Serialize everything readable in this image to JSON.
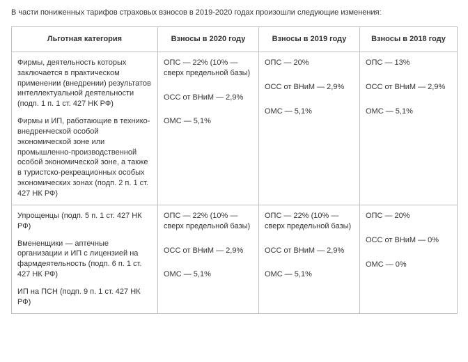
{
  "intro": "В части пониженных тарифов страховых взносов в 2019-2020 годах произошли следующие изменения:",
  "headers": {
    "c0": "Льготная категория",
    "c1": "Взносы в 2020 году",
    "c2": "Взносы в 2019 году",
    "c3": "Взносы в 2018 году"
  },
  "rows": [
    {
      "cat": [
        "Фирмы, деятельность которых заключается в практическом применении (внедрении) результатов интеллектуальной деятельности (подп. 1 п. 1 ст. 427 НК РФ)",
        "Фирмы и ИП, работающие в технико-внедренческой особой экономической зоне или промышленно-производственной особой экономической зоне, а также в туристско-рекреационных особых экономических зонах (подп. 2 п. 1 ст. 427 НК РФ)"
      ],
      "v2020": [
        "ОПС — 22% (10% — сверх предельной базы)",
        "ОСС от ВНиМ — 2,9%",
        "ОМС — 5,1%"
      ],
      "v2019": [
        "ОПС — 20%",
        "ОСС от ВНиМ — 2,9%",
        "ОМС — 5,1%"
      ],
      "v2018": [
        "ОПС — 13%",
        "ОСС от ВНиМ — 2,9%",
        "ОМС — 5,1%"
      ]
    },
    {
      "cat": [
        "Упрощенцы (подп. 5 п. 1 ст. 427 НК РФ)",
        "Вмененщики — аптечные организации и ИП с лицензией на фармдеятельность (подп. 6 п. 1 ст. 427 НК РФ)",
        "ИП на ПСН (подп. 9 п. 1 ст. 427 НК РФ)"
      ],
      "v2020": [
        "ОПС — 22% (10% — сверх предельной базы)",
        "ОСС от ВНиМ — 2,9%",
        "ОМС — 5,1%"
      ],
      "v2019": [
        "ОПС — 22% (10% — сверх предельной базы)",
        "ОСС от ВНиМ — 2,9%",
        "ОМС — 5,1%"
      ],
      "v2018": [
        "ОПС — 20%",
        "ОСС от ВНиМ — 0%",
        "ОМС — 0%"
      ]
    }
  ]
}
